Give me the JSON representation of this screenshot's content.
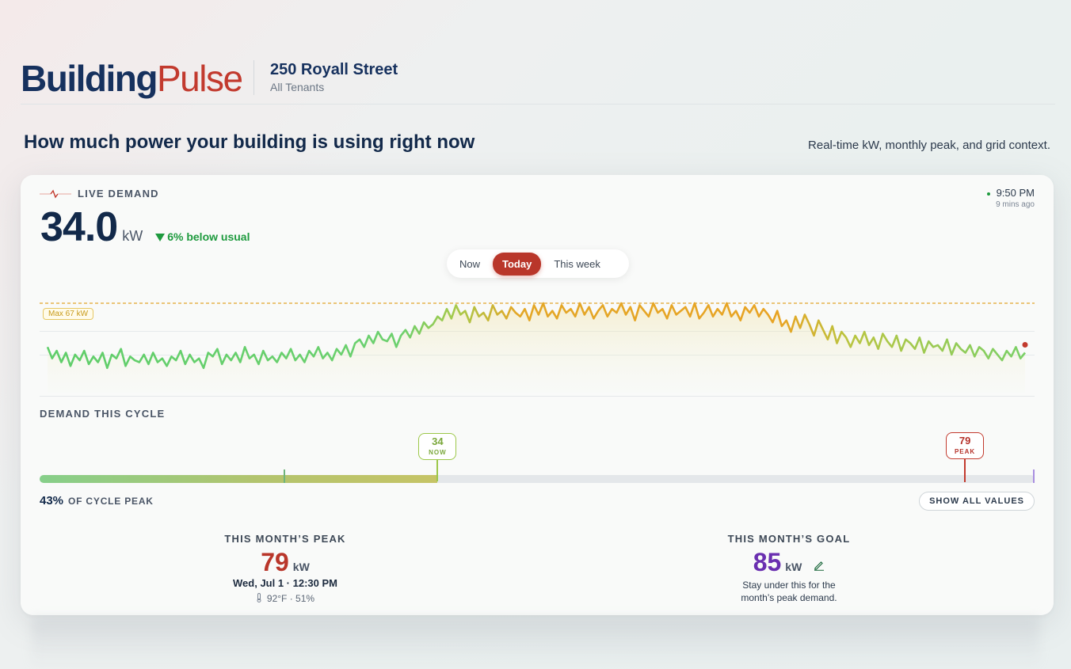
{
  "brand": {
    "part1": "Building",
    "part2": "Pulse"
  },
  "building": {
    "name": "250 Royall Street",
    "scope": "All Tenants"
  },
  "headline": "How much power your building is using right now",
  "tagline": "Real-time kW, monthly peak, and grid context.",
  "live": {
    "label": "LIVE DEMAND",
    "value": "34.0",
    "unit": "kW",
    "delta": "6% below usual",
    "time": "9:50 PM",
    "ago": "9 mins ago"
  },
  "range_tabs": [
    {
      "label": "Now",
      "active": false
    },
    {
      "label": "Today",
      "active": true
    },
    {
      "label": "This week",
      "active": false
    }
  ],
  "chart_data": {
    "type": "line",
    "max_line_label": "Max 67 kW",
    "max_value": 67,
    "ylim": [
      20,
      72
    ],
    "values": [
      44,
      38,
      42,
      36,
      41,
      34,
      40,
      37,
      42,
      35,
      39,
      36,
      41,
      33,
      40,
      38,
      43,
      34,
      39,
      37,
      36,
      40,
      35,
      41,
      36,
      38,
      34,
      39,
      37,
      42,
      35,
      40,
      36,
      38,
      33,
      41,
      39,
      43,
      35,
      40,
      37,
      41,
      36,
      44,
      38,
      40,
      35,
      42,
      37,
      39,
      36,
      41,
      38,
      43,
      37,
      40,
      36,
      42,
      39,
      44,
      38,
      41,
      37,
      43,
      40,
      45,
      39,
      46,
      48,
      44,
      50,
      46,
      52,
      48,
      47,
      51,
      44,
      50,
      53,
      49,
      55,
      51,
      57,
      54,
      56,
      60,
      58,
      64,
      59,
      66,
      61,
      63,
      57,
      65,
      60,
      62,
      58,
      66,
      61,
      63,
      59,
      65,
      62,
      60,
      64,
      58,
      66,
      61,
      67,
      60,
      63,
      59,
      66,
      62,
      64,
      60,
      67,
      61,
      65,
      59,
      63,
      66,
      60,
      64,
      62,
      67,
      61,
      65,
      58,
      66,
      63,
      60,
      67,
      62,
      64,
      59,
      66,
      61,
      63,
      65,
      60,
      67,
      59,
      62,
      66,
      60,
      64,
      61,
      67,
      60,
      63,
      58,
      65,
      62,
      66,
      60,
      64,
      61,
      57,
      63,
      55,
      58,
      52,
      60,
      54,
      61,
      56,
      50,
      58,
      53,
      48,
      55,
      46,
      52,
      49,
      44,
      50,
      46,
      52,
      45,
      49,
      43,
      51,
      47,
      44,
      50,
      42,
      48,
      46,
      43,
      49,
      41,
      47,
      44,
      45,
      42,
      48,
      40,
      46,
      43,
      41,
      45,
      39,
      44,
      42,
      38,
      43,
      40,
      37,
      42,
      39,
      44,
      38,
      41
    ],
    "current_marker": true
  },
  "cycle": {
    "label": "DEMAND THIS CYCLE",
    "now_value": "34",
    "now_label": "NOW",
    "now_fraction": 0.4,
    "peak_value": "79",
    "peak_label": "PEAK",
    "peak_fraction": 0.93,
    "pct_value": "43%",
    "pct_label": "OF CYCLE PEAK",
    "show_button": "SHOW ALL VALUES"
  },
  "month_peak": {
    "title": "THIS MONTH’S PEAK",
    "value": "79",
    "unit": "kW",
    "when": "Wed, Jul 1 · 12:30 PM",
    "weather": "92°F · 51%"
  },
  "month_goal": {
    "title": "THIS MONTH’S GOAL",
    "value": "85",
    "unit": "kW",
    "note": "Stay under this for the month’s peak demand."
  },
  "colors": {
    "brand_dark": "#16315e",
    "brand_red": "#c23a2e",
    "good_green": "#1e9a3e",
    "goal_purple": "#6a2fb0"
  }
}
